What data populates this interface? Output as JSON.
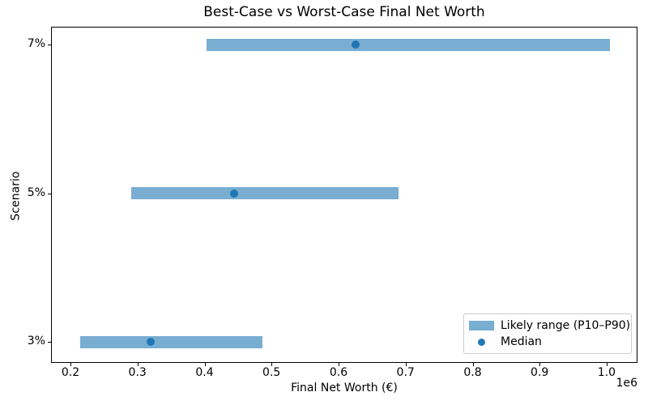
{
  "chart_data": {
    "type": "bar",
    "subtype": "horizontal-range-bars-with-median-dots",
    "title": "Best-Case vs Worst-Case Final Net Worth",
    "xlabel": "Final Net Worth (€)",
    "ylabel": "Scenario",
    "x_offset_label": "1e6",
    "xlim": [
      171000,
      1046000
    ],
    "xticks": [
      200000,
      300000,
      400000,
      500000,
      600000,
      700000,
      800000,
      900000,
      1000000
    ],
    "xtick_labels": [
      "0.2",
      "0.3",
      "0.4",
      "0.5",
      "0.6",
      "0.7",
      "0.8",
      "0.9",
      "1.0"
    ],
    "categories": [
      "7%",
      "5%",
      "3%"
    ],
    "rows": [
      {
        "category": "7%",
        "p10": 403000,
        "median": 625000,
        "p90": 1005000
      },
      {
        "category": "5%",
        "p10": 291000,
        "median": 444000,
        "p90": 689000
      },
      {
        "category": "3%",
        "p10": 215000,
        "median": 320000,
        "p90": 486000
      }
    ],
    "legend": {
      "position": "lower-right",
      "items": [
        {
          "label": "Likely range (P10–P90)",
          "marker": "patch",
          "color": "#79ADD2"
        },
        {
          "label": "Median",
          "marker": "dot",
          "color": "#1F77B4"
        }
      ]
    },
    "colors": {
      "range_bar": "#79ADD2",
      "median_dot": "#1F77B4",
      "spine": "#000000",
      "legend_border": "#cccccc"
    },
    "grid": false
  }
}
